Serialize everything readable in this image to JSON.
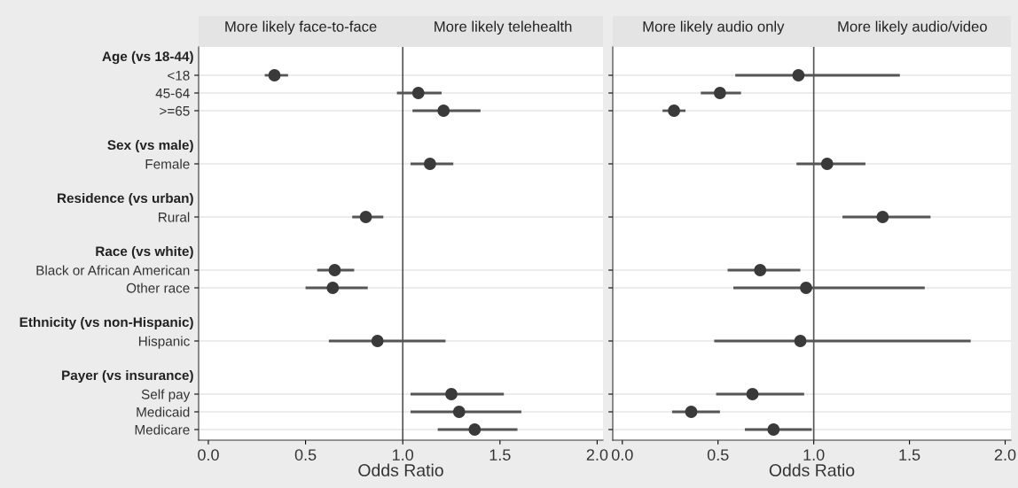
{
  "chart_data": [
    {
      "type": "scatter",
      "orientation": "horizontal",
      "xlabel": "Odds Ratio",
      "categories": [
        "Age (vs 18-44)",
        "<18",
        "45-64",
        ">=65",
        null,
        "Sex (vs male)",
        "Female",
        null,
        "Residence (vs urban)",
        "Rural",
        null,
        "Race (vs white)",
        "Black or African American",
        "Other race",
        null,
        "Ethnicity (vs non-Hispanic)",
        "Hispanic",
        null,
        "Payer (vs insurance)",
        "Self pay",
        "Medicaid",
        "Medicare"
      ],
      "series": [
        {
          "color": "#3a3a3a",
          "values": [
            null,
            0.34,
            1.08,
            1.21,
            null,
            null,
            1.14,
            null,
            null,
            0.81,
            null,
            null,
            0.65,
            0.64,
            null,
            null,
            0.87,
            null,
            null,
            1.25,
            1.29,
            1.37
          ],
          "errors": [
            null,
            [
              0.29,
              0.41
            ],
            [
              0.97,
              1.2
            ],
            [
              1.05,
              1.4
            ],
            null,
            null,
            [
              1.04,
              1.26
            ],
            null,
            null,
            [
              0.74,
              0.9
            ],
            null,
            null,
            [
              0.56,
              0.75
            ],
            [
              0.5,
              0.82
            ],
            null,
            null,
            [
              0.62,
              1.22
            ],
            null,
            null,
            [
              1.04,
              1.52
            ],
            [
              1.04,
              1.61
            ],
            [
              1.18,
              1.59
            ]
          ]
        }
      ],
      "xlim": [
        -0.05,
        2.03
      ],
      "xticks": [
        {
          "value": 0,
          "label": "0.0"
        },
        {
          "value": 0.5,
          "label": "0.5"
        },
        {
          "value": 1,
          "label": "1.0"
        },
        {
          "value": 1.5,
          "label": "1.5"
        },
        {
          "value": 2,
          "label": "2.0"
        }
      ],
      "ref_lines": [
        {
          "axis": "x",
          "value": 1,
          "color": "#555555"
        }
      ],
      "annotations": [
        "More likely face-to-face",
        "More likely telehealth"
      ],
      "grid": "y",
      "marker": "circle"
    },
    {
      "type": "scatter",
      "orientation": "horizontal",
      "xlabel": "Odds Ratio",
      "tick_labels": "x",
      "categories": [
        null,
        null,
        null,
        null,
        null,
        null,
        null,
        null,
        null,
        null,
        null,
        null,
        null,
        null,
        null,
        null,
        null,
        null,
        null,
        null,
        null,
        null
      ],
      "series": [
        {
          "color": "#3a3a3a",
          "values": [
            null,
            0.92,
            0.51,
            0.27,
            null,
            null,
            1.07,
            null,
            null,
            1.36,
            null,
            null,
            0.72,
            0.96,
            null,
            null,
            0.93,
            null,
            null,
            0.68,
            0.36,
            0.79
          ],
          "errors": [
            null,
            [
              0.59,
              1.45
            ],
            [
              0.41,
              0.62
            ],
            [
              0.21,
              0.33
            ],
            null,
            null,
            [
              0.91,
              1.27
            ],
            null,
            null,
            [
              1.15,
              1.61
            ],
            null,
            null,
            [
              0.55,
              0.93
            ],
            [
              0.58,
              1.58
            ],
            null,
            null,
            [
              0.48,
              1.82
            ],
            null,
            null,
            [
              0.49,
              0.95
            ],
            [
              0.26,
              0.51
            ],
            [
              0.64,
              0.99
            ]
          ]
        }
      ],
      "xlim": [
        -0.05,
        2.03
      ],
      "xticks": [
        {
          "value": 0,
          "label": "0.0"
        },
        {
          "value": 0.5,
          "label": "0.5"
        },
        {
          "value": 1,
          "label": "1.0"
        },
        {
          "value": 1.5,
          "label": "1.5"
        },
        {
          "value": 2,
          "label": "2.0"
        }
      ],
      "ref_lines": [
        {
          "axis": "x",
          "value": 1,
          "color": "#555555"
        }
      ],
      "annotations": [
        "More likely audio only",
        "More likely audio/video"
      ],
      "grid": "y",
      "marker": "circle"
    }
  ]
}
